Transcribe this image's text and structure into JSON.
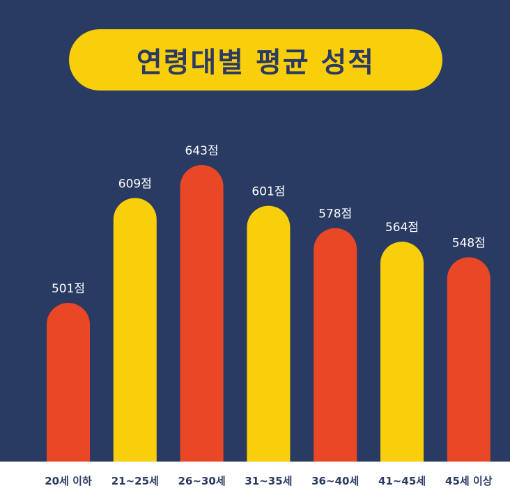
{
  "title": "연령대별 평균 성적",
  "colors": {
    "background": "#293a63",
    "accent_red": "#e94726",
    "accent_yellow": "#f9cf0c",
    "footer": "#ffffff",
    "label_text": "#2b3a63"
  },
  "chart_data": {
    "type": "bar",
    "title": "연령대별 평균 성적",
    "categories": [
      "20세 이하",
      "21~25세",
      "26~30세",
      "31~35세",
      "36~40세",
      "41~45세",
      "45세 이상"
    ],
    "values": [
      501,
      609,
      643,
      601,
      578,
      564,
      548
    ],
    "value_labels": [
      "501점",
      "609점",
      "643점",
      "601점",
      "578점",
      "564점",
      "548점"
    ],
    "bar_colors": [
      "#e94726",
      "#f9cf0c",
      "#e94726",
      "#f9cf0c",
      "#e94726",
      "#f9cf0c",
      "#e94726"
    ],
    "xlabel": "",
    "ylabel": "",
    "ylim": [
      0,
      643
    ],
    "grid": false,
    "legend": "none"
  }
}
